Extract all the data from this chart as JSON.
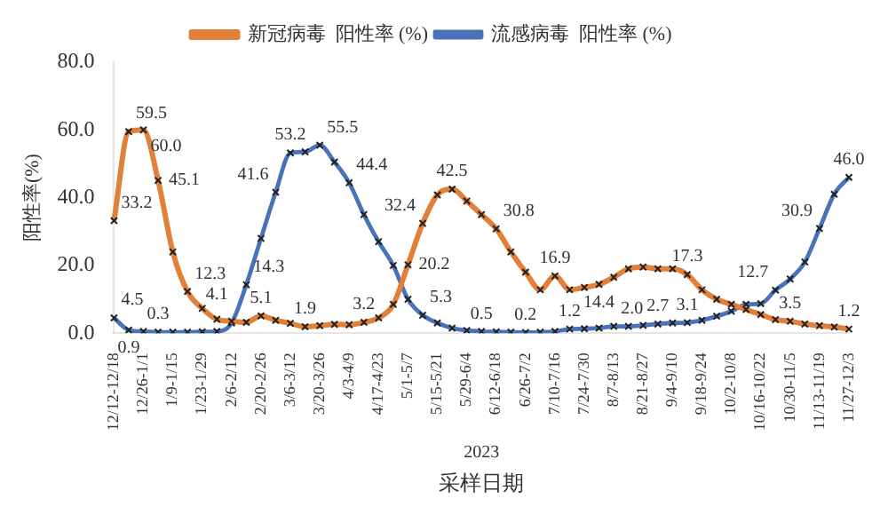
{
  "chart_data": {
    "type": "line",
    "ylabel": "阳性率(%)",
    "xlabel": "采样日期",
    "annotations": [
      "2023"
    ],
    "categories": [
      "12/12-12/18",
      null,
      "12/26-1/1",
      null,
      "1/9-1/15",
      null,
      "1/23-1/29",
      null,
      "2/6-2/12",
      null,
      "2/20-2/26",
      null,
      "3/6-3/12",
      null,
      "3/20-3/26",
      null,
      "4/3-4/9",
      null,
      "4/17-4/23",
      null,
      "5/1-5/7",
      null,
      "5/15-5/21",
      null,
      "5/29-6/4",
      null,
      "6/12-6/18",
      null,
      "6/26-7/2",
      null,
      "7/10-7/16",
      null,
      "7/24-7/30",
      null,
      "8/7-8/13",
      null,
      "8/21-8/27",
      null,
      "9/4-9/10",
      null,
      "9/18-9/24",
      null,
      "10/2-10/8",
      null,
      "10/16-10/22",
      null,
      "10/30-11/5",
      null,
      "11/13-11/19",
      null,
      "11/27-12/3"
    ],
    "series": [
      {
        "name": "新冠病毒  阳性率 (%)",
        "color": "#e2803a",
        "values": [
          33.2,
          59.5,
          60.0,
          45.1,
          24,
          12.3,
          7.3,
          4.1,
          3.5,
          3.2,
          5.1,
          3.8,
          2.9,
          1.9,
          2.2,
          2.6,
          2.5,
          3.2,
          4.5,
          8.5,
          20.2,
          32.4,
          40.8,
          42.5,
          39,
          35,
          30.8,
          24,
          18,
          12.8,
          16.9,
          12.8,
          13.5,
          14.4,
          16.5,
          19,
          19.5,
          19,
          19,
          17.3,
          12.8,
          10,
          8.5,
          7,
          5.5,
          4,
          3.5,
          2.7,
          2.2,
          1.8,
          1.2
        ],
        "value_labels": [
          "33.2",
          "59.5",
          "60.0",
          "45.1",
          null,
          "12.3",
          null,
          "4.1",
          null,
          null,
          "5.1",
          null,
          null,
          "1.9",
          null,
          null,
          null,
          "3.2",
          null,
          null,
          "20.2",
          "32.4",
          null,
          "42.5",
          null,
          null,
          "30.8",
          null,
          null,
          null,
          "16.9",
          null,
          null,
          "14.4",
          null,
          null,
          null,
          null,
          null,
          "17.3",
          null,
          null,
          null,
          null,
          null,
          null,
          "3.5",
          null,
          null,
          null,
          "1.2"
        ]
      },
      {
        "name": "流感病毒  阳性率 (%)",
        "color": "#4a72b8",
        "values": [
          4.5,
          0.9,
          0.5,
          0.3,
          0.3,
          0.3,
          0.4,
          0.5,
          3.0,
          14.3,
          28,
          41.6,
          53.2,
          53.5,
          55.5,
          50.5,
          44.4,
          35,
          27,
          20,
          10,
          5.3,
          3,
          1.5,
          0.8,
          0.5,
          0.4,
          0.3,
          0.2,
          0.3,
          0.5,
          1.2,
          1.3,
          1.5,
          2.0,
          2.0,
          2.3,
          2.7,
          3.0,
          3.1,
          3.8,
          5,
          6.5,
          8.5,
          8.7,
          12.7,
          16,
          21,
          30.9,
          41,
          46.0
        ],
        "value_labels": [
          "4.5",
          "0.9",
          null,
          "0.3",
          null,
          null,
          null,
          null,
          null,
          "14.3",
          null,
          "41.6",
          "53.2",
          null,
          "55.5",
          null,
          "44.4",
          null,
          null,
          null,
          null,
          "5.3",
          null,
          null,
          null,
          "0.5",
          null,
          null,
          "0.2",
          null,
          null,
          "1.2",
          null,
          null,
          "2.0",
          null,
          null,
          "2.7",
          null,
          "3.1",
          null,
          null,
          null,
          null,
          null,
          "12.7",
          null,
          null,
          "30.9",
          null,
          "46.0"
        ]
      }
    ],
    "ylim": [
      0,
      80
    ],
    "yticks": [
      {
        "value": 0,
        "label": "0.0"
      },
      {
        "value": 20,
        "label": "20.0"
      },
      {
        "value": 40,
        "label": "40.0"
      },
      {
        "value": 60,
        "label": "60.0"
      },
      {
        "value": 80,
        "label": "80.0"
      }
    ],
    "grid": false,
    "legend": "top",
    "marker": "cross",
    "line_style": "solid"
  }
}
